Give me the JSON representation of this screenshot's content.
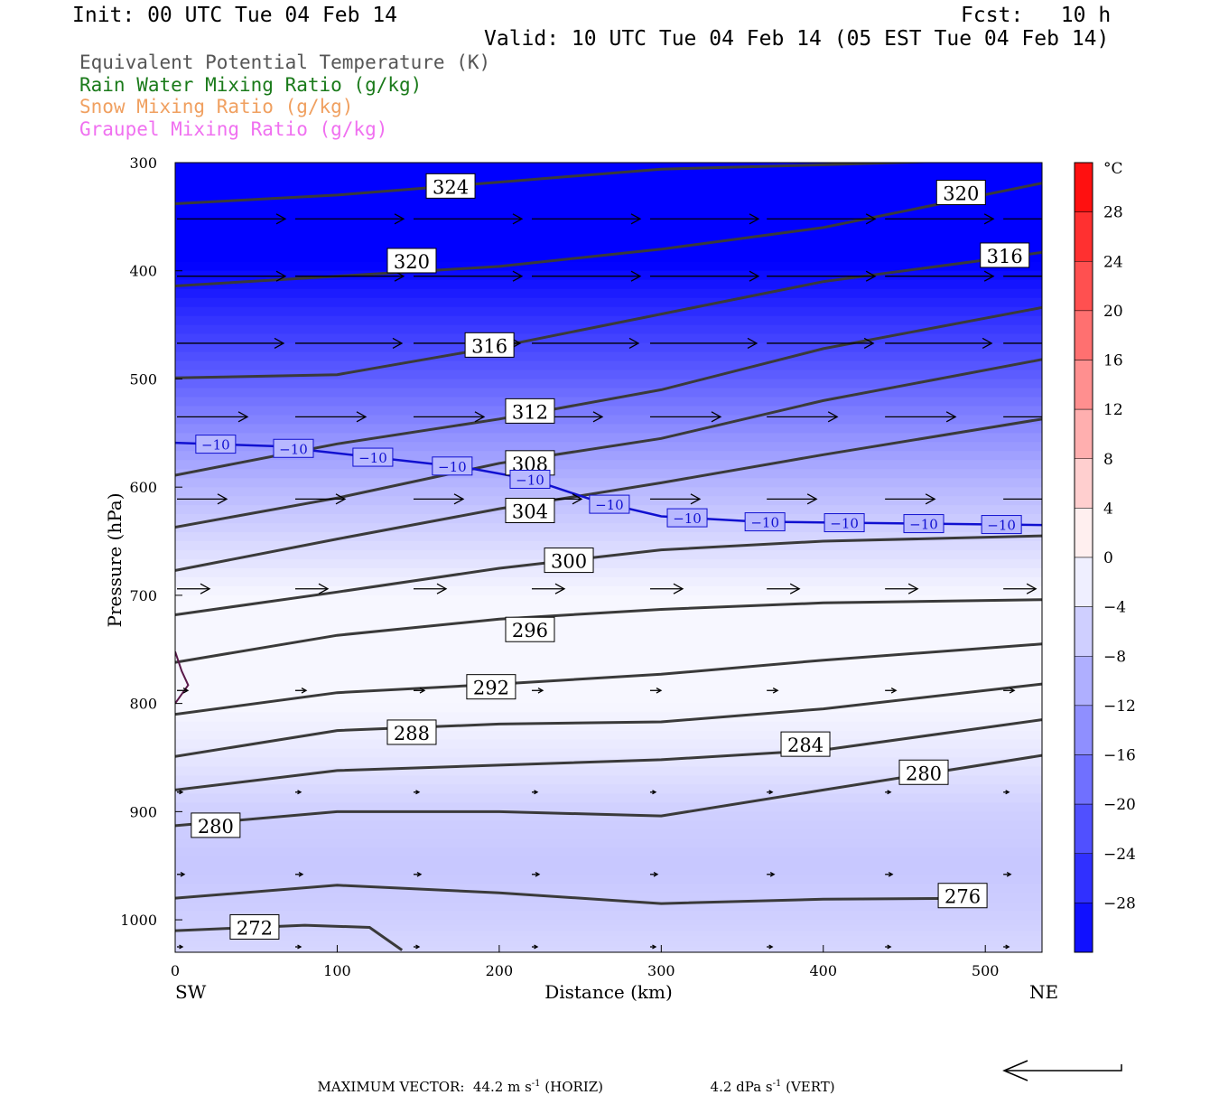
{
  "header": {
    "init": "Init: 00 UTC Tue 04 Feb 14",
    "fcst": "Fcst:   10 h",
    "valid": "Valid: 10 UTC Tue 04 Feb 14 (05 EST Tue 04 Feb 14)"
  },
  "legend": [
    {
      "text": "Equivalent Potential Temperature (K)",
      "color": "#555555"
    },
    {
      "text": "Rain Water Mixing Ratio (g/kg)",
      "color": "#1a7a1a"
    },
    {
      "text": "Snow Mixing Ratio (g/kg)",
      "color": "#f0a060"
    },
    {
      "text": "Graupel Mixing Ratio (g/kg)",
      "color": "#f070f0"
    }
  ],
  "chart_data": {
    "type": "cross-section",
    "xlabel": "Distance (km)",
    "ylabel": "Pressure (hPa)",
    "x_ticks": [
      0,
      100,
      200,
      300,
      400,
      500
    ],
    "y_ticks": [
      300,
      400,
      500,
      600,
      700,
      800,
      900,
      1000
    ],
    "xlim": [
      0,
      535
    ],
    "ylim": [
      1030,
      300
    ],
    "x_end_labels": {
      "left": "SW",
      "right": "NE"
    },
    "temperature_field_C": {
      "profile_pressure_hPa": [
        300,
        350,
        400,
        450,
        500,
        550,
        600,
        650,
        700,
        750,
        800,
        850,
        900,
        950,
        1000,
        1030
      ],
      "profile_temp_C": [
        -46,
        -38,
        -31,
        -25,
        -20,
        -14,
        -9,
        -5,
        -1,
        -1,
        -1,
        -3,
        -6,
        -7,
        -6,
        -5
      ]
    },
    "colorbar": {
      "unit": "°C",
      "ticks": [
        28,
        24,
        20,
        16,
        12,
        8,
        4,
        0,
        -4,
        -8,
        -12,
        -16,
        -20,
        -24,
        -28
      ],
      "range": [
        -32,
        32
      ]
    },
    "theta_e_contours": [
      {
        "value": 324,
        "points": [
          [
            0,
            338
          ],
          [
            100,
            330
          ],
          [
            200,
            318
          ],
          [
            300,
            306
          ],
          [
            400,
            302
          ],
          [
            535,
            296
          ]
        ]
      },
      {
        "value": 320,
        "points": [
          [
            0,
            414
          ],
          [
            100,
            405
          ],
          [
            200,
            396
          ],
          [
            300,
            380
          ],
          [
            400,
            360
          ],
          [
            535,
            319
          ]
        ]
      },
      {
        "value": 316,
        "points": [
          [
            0,
            499
          ],
          [
            100,
            496
          ],
          [
            200,
            470
          ],
          [
            300,
            440
          ],
          [
            400,
            410
          ],
          [
            535,
            383
          ]
        ]
      },
      {
        "value": 312,
        "points": [
          [
            0,
            589
          ],
          [
            100,
            560
          ],
          [
            200,
            537
          ],
          [
            300,
            510
          ],
          [
            400,
            472
          ],
          [
            535,
            434
          ]
        ]
      },
      {
        "value": 308,
        "points": [
          [
            0,
            637
          ],
          [
            100,
            610
          ],
          [
            200,
            578
          ],
          [
            300,
            555
          ],
          [
            400,
            520
          ],
          [
            535,
            482
          ]
        ]
      },
      {
        "value": 304,
        "points": [
          [
            0,
            677
          ],
          [
            100,
            648
          ],
          [
            200,
            620
          ],
          [
            300,
            596
          ],
          [
            400,
            570
          ],
          [
            535,
            537
          ]
        ]
      },
      {
        "value": 300,
        "points": [
          [
            0,
            718
          ],
          [
            100,
            697
          ],
          [
            200,
            675
          ],
          [
            300,
            658
          ],
          [
            400,
            650
          ],
          [
            535,
            645
          ]
        ]
      },
      {
        "value": 296,
        "points": [
          [
            0,
            762
          ],
          [
            100,
            737
          ],
          [
            200,
            722
          ],
          [
            300,
            713
          ],
          [
            400,
            707
          ],
          [
            535,
            704
          ]
        ]
      },
      {
        "value": 292,
        "points": [
          [
            0,
            810
          ],
          [
            100,
            790
          ],
          [
            200,
            782
          ],
          [
            300,
            773
          ],
          [
            400,
            760
          ],
          [
            535,
            745
          ]
        ]
      },
      {
        "value": 288,
        "points": [
          [
            0,
            849
          ],
          [
            100,
            825
          ],
          [
            200,
            819
          ],
          [
            300,
            817
          ],
          [
            400,
            805
          ],
          [
            535,
            782
          ]
        ]
      },
      {
        "value": 284,
        "points": [
          [
            0,
            880
          ],
          [
            100,
            862
          ],
          [
            200,
            857
          ],
          [
            300,
            852
          ],
          [
            400,
            843
          ],
          [
            535,
            815
          ]
        ]
      },
      {
        "value": 280,
        "points": [
          [
            0,
            913
          ],
          [
            100,
            900
          ],
          [
            200,
            900
          ],
          [
            300,
            904
          ],
          [
            400,
            880
          ],
          [
            535,
            848
          ]
        ]
      },
      {
        "value": 276,
        "points": [
          [
            0,
            980
          ],
          [
            100,
            968
          ],
          [
            200,
            975
          ],
          [
            300,
            985
          ],
          [
            400,
            981
          ],
          [
            500,
            980
          ]
        ]
      },
      {
        "value": 272,
        "points": [
          [
            0,
            1010
          ],
          [
            80,
            1005
          ],
          [
            120,
            1007
          ],
          [
            140,
            1028
          ]
        ]
      }
    ],
    "theta_e_labels": [
      {
        "value": "324",
        "at": [
          170,
          322
        ]
      },
      {
        "value": "320",
        "at": [
          485,
          328
        ]
      },
      {
        "value": "320",
        "at": [
          146,
          391
        ]
      },
      {
        "value": "316",
        "at": [
          512,
          386
        ]
      },
      {
        "value": "316",
        "at": [
          194,
          469
        ]
      },
      {
        "value": "312",
        "at": [
          219,
          530
        ]
      },
      {
        "value": "308",
        "at": [
          219,
          578
        ]
      },
      {
        "value": "304",
        "at": [
          219,
          622
        ]
      },
      {
        "value": "300",
        "at": [
          243,
          668
        ]
      },
      {
        "value": "296",
        "at": [
          219,
          732
        ]
      },
      {
        "value": "292",
        "at": [
          195,
          785
        ]
      },
      {
        "value": "288",
        "at": [
          146,
          827
        ]
      },
      {
        "value": "284",
        "at": [
          389,
          838
        ]
      },
      {
        "value": "280",
        "at": [
          462,
          864
        ]
      },
      {
        "value": "280",
        "at": [
          25,
          913
        ]
      },
      {
        "value": "276",
        "at": [
          486,
          978
        ]
      },
      {
        "value": "272",
        "at": [
          49,
          1007
        ]
      }
    ],
    "isotherm_minus10": {
      "value": "−10",
      "points": [
        [
          0,
          559
        ],
        [
          60,
          562
        ],
        [
          120,
          572
        ],
        [
          180,
          582
        ],
        [
          220,
          593
        ],
        [
          260,
          613
        ],
        [
          300,
          627
        ],
        [
          360,
          632
        ],
        [
          420,
          633
        ],
        [
          535,
          635
        ]
      ],
      "label_x": [
        25,
        73,
        122,
        171,
        219,
        268,
        316,
        364,
        413,
        462,
        510
      ]
    },
    "rain_contour": {
      "points": [
        [
          0,
          752
        ],
        [
          4,
          770
        ],
        [
          8,
          783
        ],
        [
          0,
          800
        ]
      ]
    },
    "wind_vectors": [
      {
        "p": 352,
        "xs": [
          0,
          73,
          146,
          219,
          292,
          364,
          437,
          510
        ],
        "len": 120
      },
      {
        "p": 405,
        "xs": [
          0,
          73,
          146,
          219,
          292,
          364,
          437,
          510
        ],
        "len": 120
      },
      {
        "p": 467,
        "xs": [
          0,
          73,
          146,
          219,
          292,
          364,
          437,
          510
        ],
        "len": 118
      },
      {
        "p": 535,
        "xs": [
          0,
          73,
          146,
          219,
          292,
          364,
          437,
          510
        ],
        "len": 78
      },
      {
        "p": 611,
        "xs": [
          0,
          73,
          146,
          219,
          292,
          364,
          437,
          510
        ],
        "len": 55
      },
      {
        "p": 694,
        "xs": [
          0,
          73,
          146,
          219,
          292,
          364,
          437,
          510
        ],
        "len": 36
      },
      {
        "p": 788,
        "xs": [
          0,
          73,
          146,
          219,
          292,
          364,
          437,
          510
        ],
        "len": 12
      },
      {
        "p": 882,
        "xs": [
          0,
          73,
          146,
          219,
          292,
          364,
          437,
          510
        ],
        "len": 6
      },
      {
        "p": 958,
        "xs": [
          0,
          73,
          146,
          219,
          292,
          364,
          437,
          510
        ],
        "len": 8
      },
      {
        "p": 1025,
        "xs": [
          0,
          73,
          146,
          219,
          292,
          364,
          437,
          510
        ],
        "len": 6
      }
    ]
  },
  "footer": {
    "max_vector": "MAXIMUM VECTOR:  44.2 m s",
    "horiz_sup": "-1",
    "horiz": " (HORIZ)",
    "vert": "4.2 dPa s",
    "vert_sup": "-1",
    "vert_tail": " (VERT)"
  }
}
